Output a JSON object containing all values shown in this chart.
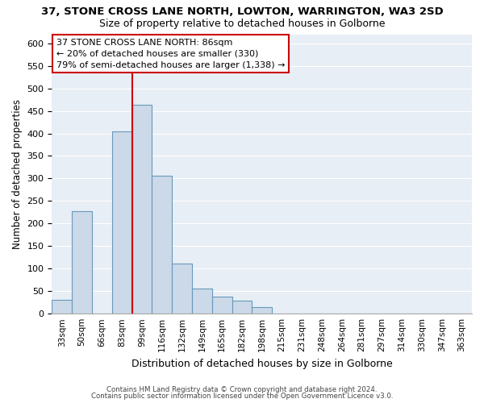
{
  "title": "37, STONE CROSS LANE NORTH, LOWTON, WARRINGTON, WA3 2SD",
  "subtitle": "Size of property relative to detached houses in Golborne",
  "xlabel": "Distribution of detached houses by size in Golborne",
  "ylabel": "Number of detached properties",
  "bar_color": "#ccd9e8",
  "bar_edge_color": "#6699bb",
  "bin_labels": [
    "33sqm",
    "50sqm",
    "66sqm",
    "83sqm",
    "99sqm",
    "116sqm",
    "132sqm",
    "149sqm",
    "165sqm",
    "182sqm",
    "198sqm",
    "215sqm",
    "231sqm",
    "248sqm",
    "264sqm",
    "281sqm",
    "297sqm",
    "314sqm",
    "330sqm",
    "347sqm",
    "363sqm"
  ],
  "bar_heights": [
    30,
    228,
    0,
    405,
    463,
    307,
    111,
    55,
    37,
    29,
    14,
    0,
    0,
    0,
    0,
    0,
    0,
    0,
    0,
    0,
    0
  ],
  "ylim": [
    0,
    620
  ],
  "yticks": [
    0,
    50,
    100,
    150,
    200,
    250,
    300,
    350,
    400,
    450,
    500,
    550,
    600
  ],
  "vline_color": "#cc0000",
  "vline_index": 3.5,
  "annotation_title": "37 STONE CROSS LANE NORTH: 86sqm",
  "annotation_line1": "← 20% of detached houses are smaller (330)",
  "annotation_line2": "79% of semi-detached houses are larger (1,338) →",
  "annotation_box_color": "#ffffff",
  "annotation_box_edge": "#cc0000",
  "footer1": "Contains HM Land Registry data © Crown copyright and database right 2024.",
  "footer2": "Contains public sector information licensed under the Open Government Licence v3.0.",
  "background_color": "#ffffff",
  "plot_bg_color": "#e8eef5",
  "grid_color": "#ffffff"
}
